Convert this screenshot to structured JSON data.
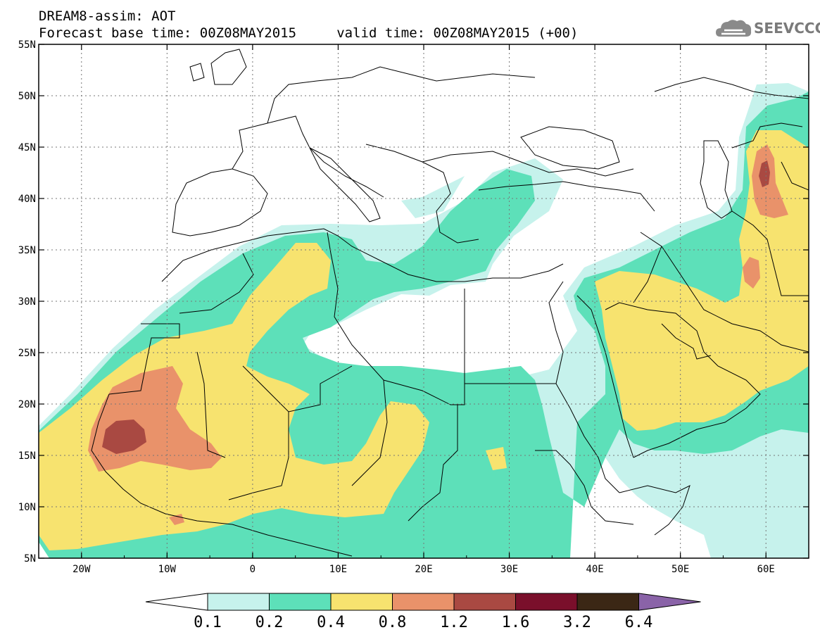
{
  "title": {
    "line1": "DREAM8-assim: AOT",
    "line2": "Forecast base time: 00Z08MAY2015     valid time: 00Z08MAY2015 (+00)"
  },
  "logo": {
    "text": "SEEVCCC",
    "icon": "cloud-icon"
  },
  "map": {
    "lon_range": [
      -25,
      65
    ],
    "lat_range": [
      5,
      55
    ],
    "x_ticks": [
      "20W",
      "10W",
      "0",
      "10E",
      "20E",
      "30E",
      "40E",
      "50E",
      "60E"
    ],
    "y_ticks": [
      "55N",
      "50N",
      "45N",
      "40N",
      "35N",
      "30N",
      "25N",
      "20N",
      "15N",
      "10N",
      "5N"
    ]
  },
  "colorbar": {
    "labels": [
      "0.1",
      "0.2",
      "0.4",
      "0.8",
      "1.2",
      "1.6",
      "3.2",
      "6.4"
    ],
    "colors": [
      "#ffffff",
      "#c6f2ec",
      "#5de0b9",
      "#f7e36f",
      "#e9926a",
      "#a94942",
      "#7a0f2b",
      "#3b2715",
      "#8a63a8"
    ]
  },
  "colors": {
    "l1": "#c6f2ec",
    "l2": "#5de0b9",
    "l3": "#f7e36f",
    "l4": "#e9926a",
    "l5": "#a94942",
    "background": "#ffffff"
  }
}
